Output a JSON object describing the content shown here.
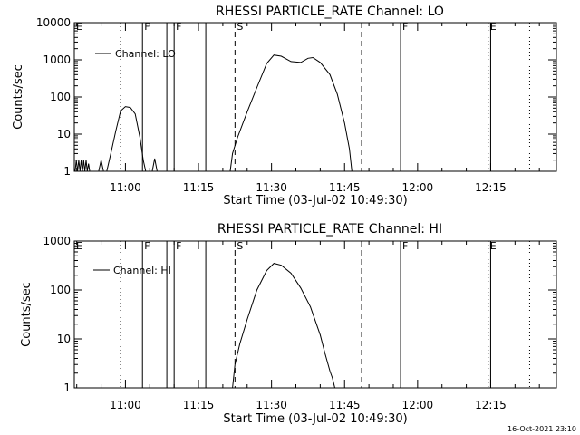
{
  "chart_data": [
    {
      "type": "line",
      "title": "RHESSI PARTICLE_RATE Channel: LO",
      "xlabel": "Start Time (03-Jul-02 10:49:30)",
      "ylabel": "Counts/sec",
      "yscale": "log",
      "xlim": [
        "10:49:30",
        "12:28:30"
      ],
      "ylim": [
        1,
        10000
      ],
      "x_ticks": [
        "11:00",
        "11:15",
        "11:30",
        "11:45",
        "12:00",
        "12:15"
      ],
      "y_ticks": [
        "1",
        "10",
        "100",
        "1000",
        "10000"
      ],
      "legend": {
        "entry": "Channel: LO",
        "placement": "top-left"
      },
      "series": [
        {
          "name": "Channel: LO",
          "segments": [
            [
              [
                "10:49:40",
                1
              ],
              [
                "10:49:55",
                2
              ],
              [
                "10:50:10",
                1
              ],
              [
                "10:50:25",
                2
              ],
              [
                "10:50:40",
                1
              ],
              [
                "10:50:55",
                2
              ],
              [
                "10:51:10",
                1
              ],
              [
                "10:51:25",
                2
              ],
              [
                "10:51:40",
                1
              ],
              [
                "10:51:55",
                2
              ],
              [
                "10:52:10",
                1
              ],
              [
                "10:52:25",
                1.6
              ],
              [
                "10:52:40",
                1
              ]
            ],
            [
              [
                "10:54:30",
                1
              ],
              [
                "10:55:00",
                2.0
              ],
              [
                "10:55:30",
                1
              ]
            ],
            [
              [
                "10:56:10",
                1
              ],
              [
                "10:57:00",
                3
              ],
              [
                "10:58:00",
                12
              ],
              [
                "10:59:00",
                42
              ],
              [
                "11:00:00",
                55
              ],
              [
                "11:01:00",
                52
              ],
              [
                "11:02:00",
                35
              ],
              [
                "11:03:00",
                8
              ],
              [
                "11:03:40",
                2
              ],
              [
                "11:04:10",
                1
              ]
            ],
            [
              [
                "11:05:30",
                1
              ],
              [
                "11:06:00",
                2.2
              ],
              [
                "11:06:30",
                1
              ]
            ],
            [
              [
                "11:21:30",
                1
              ],
              [
                "11:22:00",
                3
              ],
              [
                "11:23:00",
                8
              ],
              [
                "11:25:00",
                40
              ],
              [
                "11:27:00",
                180
              ],
              [
                "11:29:00",
                800
              ],
              [
                "11:30:30",
                1350
              ],
              [
                "11:32:00",
                1250
              ],
              [
                "11:34:00",
                900
              ],
              [
                "11:36:00",
                850
              ],
              [
                "11:37:30",
                1100
              ],
              [
                "11:38:30",
                1150
              ],
              [
                "11:40:00",
                850
              ],
              [
                "11:42:00",
                400
              ],
              [
                "11:43:30",
                120
              ],
              [
                "11:45:00",
                20
              ],
              [
                "11:46:00",
                4
              ],
              [
                "11:46:30",
                1
              ]
            ]
          ]
        }
      ]
    },
    {
      "type": "line",
      "title": "RHESSI PARTICLE_RATE Channel: HI",
      "xlabel": "Start Time (03-Jul-02 10:49:30)",
      "ylabel": "Counts/sec",
      "yscale": "log",
      "xlim": [
        "10:49:30",
        "12:28:30"
      ],
      "ylim": [
        1,
        1000
      ],
      "x_ticks": [
        "11:00",
        "11:15",
        "11:30",
        "11:45",
        "12:00",
        "12:15"
      ],
      "y_ticks": [
        "1",
        "10",
        "100",
        "1000"
      ],
      "legend": {
        "entry": "Channel: HI",
        "placement": "top-left"
      },
      "series": [
        {
          "name": "Channel: HI",
          "segments": [
            [
              [
                "11:22:00",
                1
              ],
              [
                "11:22:30",
                3
              ],
              [
                "11:23:30",
                8
              ],
              [
                "11:25:00",
                25
              ],
              [
                "11:27:00",
                100
              ],
              [
                "11:29:00",
                250
              ],
              [
                "11:30:30",
                350
              ],
              [
                "11:32:00",
                320
              ],
              [
                "11:34:00",
                220
              ],
              [
                "11:36:00",
                110
              ],
              [
                "11:38:00",
                45
              ],
              [
                "11:40:00",
                12
              ],
              [
                "11:41:00",
                5
              ],
              [
                "11:42:00",
                2.2
              ],
              [
                "11:42:30",
                1.6
              ],
              [
                "11:43:00",
                1
              ]
            ]
          ]
        }
      ]
    }
  ],
  "markers": [
    {
      "label": "E",
      "time": "10:49:30",
      "style": "solid"
    },
    {
      "label": "",
      "time": "10:59:00",
      "style": "dotted"
    },
    {
      "label": "F",
      "time": "11:03:30",
      "style": "solid"
    },
    {
      "label": "",
      "time": "11:08:30",
      "style": "solid"
    },
    {
      "label": "F",
      "time": "11:10:00",
      "style": "solid"
    },
    {
      "label": "",
      "time": "11:16:30",
      "style": "solid"
    },
    {
      "label": "S",
      "time": "11:22:30",
      "style": "dashed"
    },
    {
      "label": "",
      "time": "11:48:30",
      "style": "dashed"
    },
    {
      "label": "F",
      "time": "11:56:30",
      "style": "solid"
    },
    {
      "label": "E",
      "time": "12:14:30",
      "style": "dotted"
    },
    {
      "label": "",
      "time": "12:15:00",
      "style": "solid"
    },
    {
      "label": "",
      "time": "12:23:00",
      "style": "dotted"
    }
  ],
  "timestamp": "16-Oct-2021 23:10"
}
